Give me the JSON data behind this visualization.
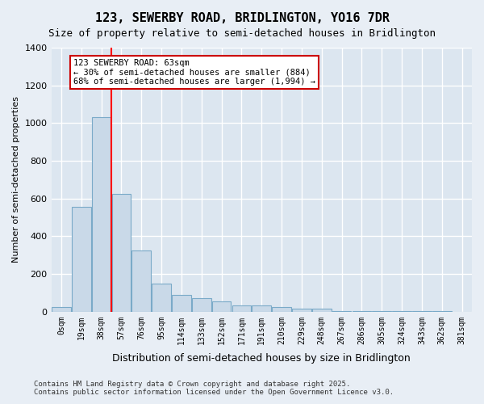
{
  "title": "123, SEWERBY ROAD, BRIDLINGTON, YO16 7DR",
  "subtitle": "Size of property relative to semi-detached houses in Bridlington",
  "xlabel": "Distribution of semi-detached houses by size in Bridlington",
  "ylabel": "Number of semi-detached properties",
  "bin_labels": [
    "0sqm",
    "19sqm",
    "38sqm",
    "57sqm",
    "76sqm",
    "95sqm",
    "114sqm",
    "133sqm",
    "152sqm",
    "171sqm",
    "191sqm",
    "210sqm",
    "229sqm",
    "248sqm",
    "267sqm",
    "286sqm",
    "305sqm",
    "324sqm",
    "343sqm",
    "362sqm",
    "381sqm"
  ],
  "bar_values": [
    25,
    558,
    1030,
    625,
    325,
    150,
    88,
    72,
    55,
    35,
    35,
    25,
    15,
    15,
    5,
    5,
    5,
    3,
    2,
    2,
    1
  ],
  "bar_color": "#c9d9e8",
  "bar_edge_color": "#7aaac8",
  "ylim": [
    0,
    1400
  ],
  "yticks": [
    0,
    200,
    400,
    600,
    800,
    1000,
    1200,
    1400
  ],
  "red_line_x": 2.5,
  "annotation_title": "123 SEWERBY ROAD: 63sqm",
  "annotation_line1": "← 30% of semi-detached houses are smaller (884)",
  "annotation_line2": "68% of semi-detached houses are larger (1,994) →",
  "footer_line1": "Contains HM Land Registry data © Crown copyright and database right 2025.",
  "footer_line2": "Contains public sector information licensed under the Open Government Licence v3.0.",
  "background_color": "#e8eef5",
  "plot_background_color": "#dce6f0",
  "grid_color": "#ffffff",
  "annotation_box_color": "#ffffff",
  "annotation_box_edge": "#cc0000"
}
